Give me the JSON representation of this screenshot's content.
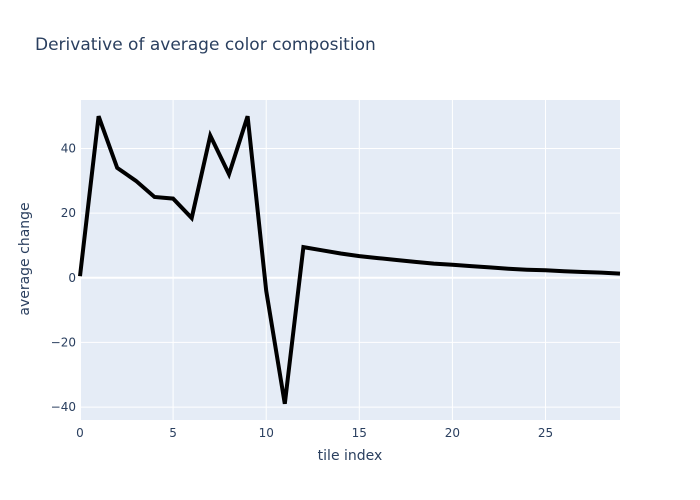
{
  "chart_data": {
    "type": "line",
    "title": "Derivative of average color composition",
    "xlabel": "tile index",
    "ylabel": "average change",
    "xlim": [
      0,
      29
    ],
    "ylim": [
      -44,
      55
    ],
    "x_ticks": [
      0,
      5,
      10,
      15,
      20,
      25
    ],
    "y_ticks": [
      -40,
      -20,
      0,
      20,
      40
    ],
    "x_tick_labels": [
      "0",
      "5",
      "10",
      "15",
      "20",
      "25"
    ],
    "y_tick_labels": [
      "−40",
      "−20",
      "0",
      "20",
      "40"
    ],
    "grid": true,
    "legend": "none",
    "colors": {
      "line": "#000000",
      "plot_bg": "#e5ecf6",
      "grid": "#ffffff",
      "text": "#2a3f5f"
    },
    "series": [
      {
        "x": [
          0,
          1,
          2,
          3,
          4,
          5,
          6,
          7,
          8,
          9,
          10,
          11,
          12,
          13,
          14,
          15,
          16,
          17,
          18,
          19,
          20,
          21,
          22,
          23,
          24,
          25,
          26,
          27,
          28,
          29
        ],
        "y": [
          0.5,
          50,
          34,
          30,
          25,
          24.5,
          18.5,
          44,
          32,
          50,
          -4,
          -39,
          9.5,
          8.5,
          7.5,
          6.7,
          6.1,
          5.5,
          4.9,
          4.4,
          4.0,
          3.6,
          3.2,
          2.8,
          2.5,
          2.3,
          2.0,
          1.8,
          1.6,
          1.3
        ]
      }
    ]
  }
}
